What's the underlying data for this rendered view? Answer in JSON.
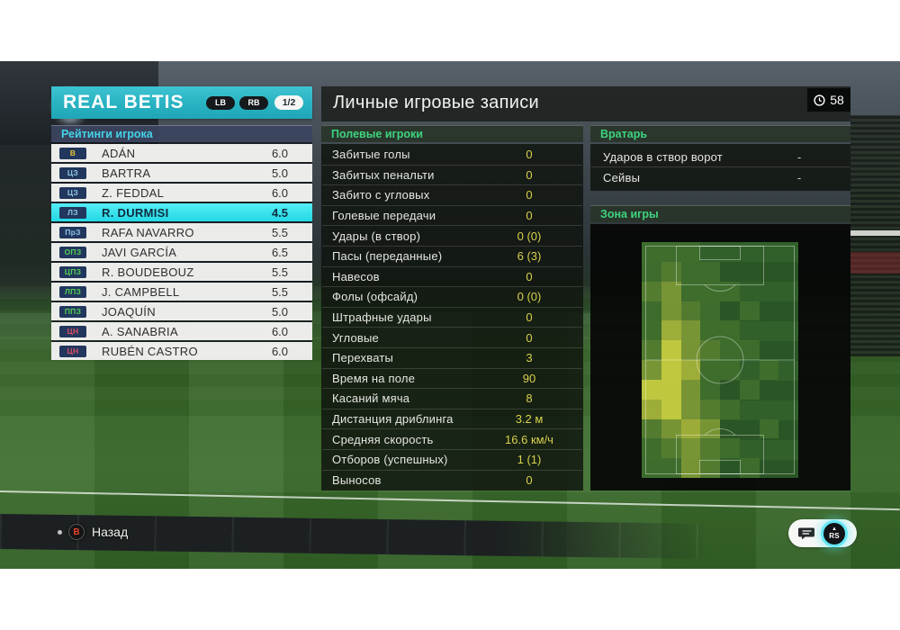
{
  "team_panel": {
    "title": "REAL BETIS",
    "lb_label": "LB",
    "rb_label": "RB",
    "page_indicator": "1/2",
    "subtitle": "Рейтинги игрока",
    "badge_bg": "#22375d",
    "players": [
      {
        "pos": "В",
        "pos_color": "#e6c33b",
        "name": "ADÁN",
        "rating": "6.0",
        "selected": false
      },
      {
        "pos": "ЦЗ",
        "pos_color": "#8ec6e6",
        "name": "BARTRA",
        "rating": "5.0",
        "selected": false
      },
      {
        "pos": "ЦЗ",
        "pos_color": "#8ec6e6",
        "name": "Z. FEDDAL",
        "rating": "6.0",
        "selected": false
      },
      {
        "pos": "ЛЗ",
        "pos_color": "#8ec6e6",
        "name": "R. DURMISI",
        "rating": "4.5",
        "selected": true
      },
      {
        "pos": "ПрЗ",
        "pos_color": "#8ec6e6",
        "name": "RAFA NAVARRO",
        "rating": "5.5",
        "selected": false
      },
      {
        "pos": "ОПЗ",
        "pos_color": "#55cd55",
        "name": "JAVI GARCÍA",
        "rating": "6.5",
        "selected": false
      },
      {
        "pos": "ЦПЗ",
        "pos_color": "#55cd55",
        "name": "R. BOUDEBOUZ",
        "rating": "5.5",
        "selected": false
      },
      {
        "pos": "ЛПЗ",
        "pos_color": "#55cd55",
        "name": "J. CAMPBELL",
        "rating": "5.5",
        "selected": false
      },
      {
        "pos": "ППЗ",
        "pos_color": "#55cd55",
        "name": "JOAQUÍN",
        "rating": "5.0",
        "selected": false
      },
      {
        "pos": "ЦН",
        "pos_color": "#de4f64",
        "name": "A. SANABRIA",
        "rating": "6.0",
        "selected": false
      },
      {
        "pos": "ЦН",
        "pos_color": "#de4f64",
        "name": "RUBÉN CASTRO",
        "rating": "6.0",
        "selected": false
      }
    ]
  },
  "records_panel": {
    "title": "Личные игровые записи",
    "clock_value": "58",
    "field_header": "Полевые игроки",
    "gk_header": "Вратарь",
    "zone_header": "Зона игры",
    "field_stats": [
      {
        "label": "Забитые голы",
        "value": "0"
      },
      {
        "label": "Забитых пенальти",
        "value": "0"
      },
      {
        "label": "Забито с угловых",
        "value": "0"
      },
      {
        "label": "Голевые передачи",
        "value": "0"
      },
      {
        "label": "Удары (в створ)",
        "value": "0 (0)"
      },
      {
        "label": "Пасы (переданные)",
        "value": "6 (3)"
      },
      {
        "label": "Навесов",
        "value": "0"
      },
      {
        "label": "Фолы (офсайд)",
        "value": "0 (0)"
      },
      {
        "label": "Штрафные удары",
        "value": "0"
      },
      {
        "label": "Угловые",
        "value": "0"
      },
      {
        "label": "Перехваты",
        "value": "3"
      },
      {
        "label": "Время на поле",
        "value": "90"
      },
      {
        "label": "Касаний мяча",
        "value": "8"
      },
      {
        "label": "Дистанция дриблинга",
        "value": "3.2 м"
      },
      {
        "label": "Средняя скорость",
        "value": "16.6 км/ч"
      },
      {
        "label": "Отборов (успешных)",
        "value": "1 (1)"
      },
      {
        "label": "Выносов",
        "value": "0"
      }
    ],
    "gk_stats": [
      {
        "label": "Ударов в створ ворот",
        "value": "-"
      },
      {
        "label": "Сейвы",
        "value": "-"
      }
    ]
  },
  "heatmap": {
    "type": "heatmap",
    "cols": 8,
    "rows": 12,
    "level_colors": [
      "",
      "#3f6f2c",
      "#567f31",
      "#7e9a36",
      "#a7b43a",
      "#cbd140"
    ],
    "grid": [
      [
        1,
        1,
        1,
        0,
        0,
        0,
        0,
        0
      ],
      [
        1,
        2,
        1,
        1,
        0,
        0,
        0,
        0
      ],
      [
        2,
        3,
        1,
        1,
        1,
        0,
        0,
        0
      ],
      [
        1,
        3,
        2,
        1,
        0,
        1,
        0,
        0
      ],
      [
        1,
        4,
        3,
        1,
        1,
        0,
        0,
        0
      ],
      [
        2,
        5,
        3,
        2,
        1,
        1,
        0,
        0
      ],
      [
        3,
        5,
        4,
        1,
        1,
        0,
        1,
        0
      ],
      [
        5,
        5,
        3,
        1,
        0,
        1,
        0,
        0
      ],
      [
        4,
        5,
        3,
        2,
        1,
        0,
        0,
        0
      ],
      [
        2,
        3,
        4,
        3,
        0,
        0,
        1,
        0
      ],
      [
        1,
        2,
        3,
        2,
        1,
        0,
        0,
        0
      ],
      [
        1,
        1,
        3,
        2,
        0,
        1,
        0,
        0
      ]
    ]
  },
  "footer": {
    "back_button_glyph": "B",
    "back_label": "Назад",
    "rs_label": "RS",
    "rs_arrow": "▲"
  },
  "colors": {
    "accent_teal": "#28b2c2",
    "selected_cyan": "#2ee2ec",
    "stat_value_yellow": "#d9d14e",
    "section_green": "#3dd47f",
    "subtitle_cyan": "#44d3e7"
  }
}
